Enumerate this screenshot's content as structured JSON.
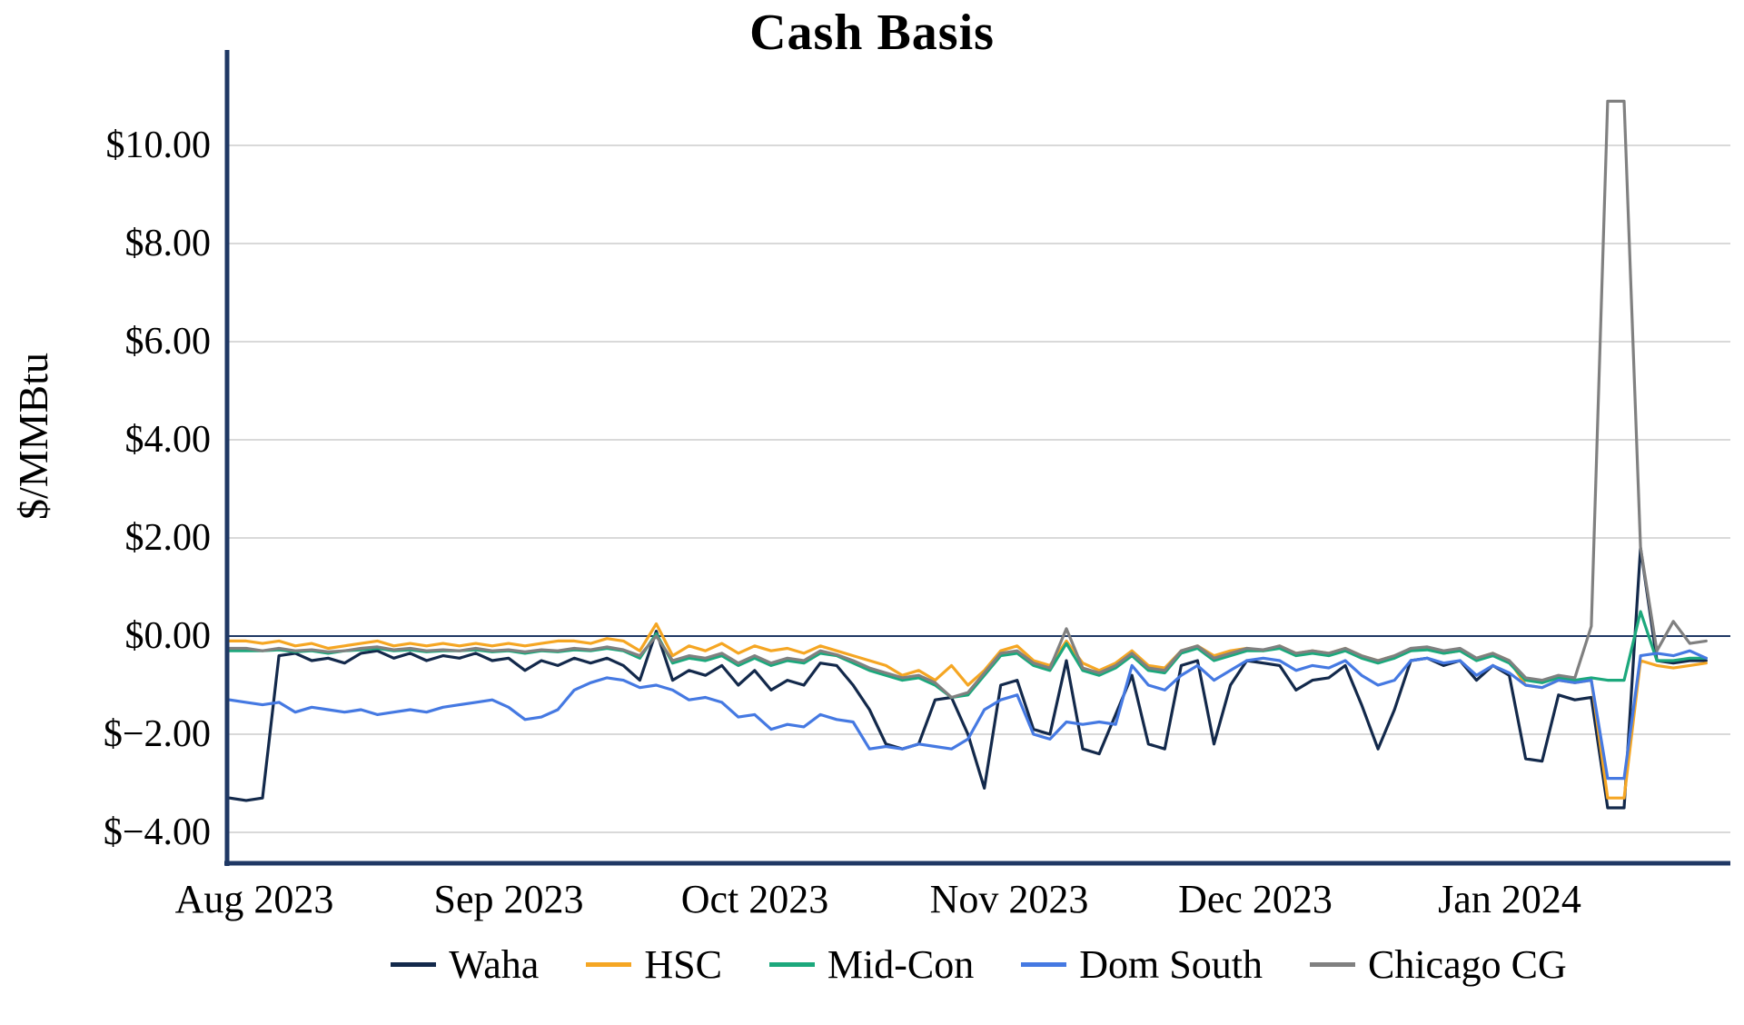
{
  "title": "Cash Basis",
  "colors": {
    "axis": "#1F3864",
    "gridline": "#D9D9D9",
    "background": "#FFFFFF"
  },
  "chart_data": {
    "type": "line",
    "title": "Cash Basis",
    "xlabel": "",
    "ylabel": "$/MMBtu",
    "x_unit": "days since 2023-08-01",
    "xlim": [
      -3,
      180
    ],
    "ylim": [
      -4.6,
      11.85
    ],
    "grid": "horizontal",
    "legend_position": "bottom",
    "x_ticks": [
      {
        "day": 0,
        "label": "Aug 2023"
      },
      {
        "day": 31,
        "label": "Sep 2023"
      },
      {
        "day": 61,
        "label": "Oct 2023"
      },
      {
        "day": 92,
        "label": "Nov 2023"
      },
      {
        "day": 122,
        "label": "Dec 2023"
      },
      {
        "day": 153,
        "label": "Jan 2024"
      }
    ],
    "y_ticks": [
      {
        "value": -4,
        "label": "$−4.00"
      },
      {
        "value": -2,
        "label": "$−2.00"
      },
      {
        "value": 0,
        "label": "$0.00"
      },
      {
        "value": 2,
        "label": "$2.00"
      },
      {
        "value": 4,
        "label": "$4.00"
      },
      {
        "value": 6,
        "label": "$6.00"
      },
      {
        "value": 8,
        "label": "$8.00"
      },
      {
        "value": 10,
        "label": "$10.00"
      }
    ],
    "x": [
      -3,
      -1,
      1,
      3,
      5,
      7,
      9,
      11,
      13,
      15,
      17,
      19,
      21,
      23,
      25,
      27,
      29,
      31,
      33,
      35,
      37,
      39,
      41,
      43,
      45,
      47,
      49,
      51,
      53,
      55,
      57,
      59,
      61,
      63,
      65,
      67,
      69,
      71,
      73,
      75,
      77,
      79,
      81,
      83,
      85,
      87,
      89,
      91,
      93,
      95,
      97,
      99,
      101,
      103,
      105,
      107,
      109,
      111,
      113,
      115,
      117,
      119,
      121,
      123,
      125,
      127,
      129,
      131,
      133,
      135,
      137,
      139,
      141,
      143,
      145,
      147,
      149,
      151,
      153,
      155,
      157,
      159,
      161,
      163,
      165,
      167,
      169,
      171,
      173,
      175,
      177
    ],
    "series": [
      {
        "name": "Waha",
        "color": "#13294B",
        "values": [
          -3.3,
          -3.35,
          -3.3,
          -0.4,
          -0.35,
          -0.5,
          -0.45,
          -0.55,
          -0.35,
          -0.3,
          -0.45,
          -0.35,
          -0.5,
          -0.4,
          -0.45,
          -0.35,
          -0.5,
          -0.45,
          -0.7,
          -0.5,
          -0.6,
          -0.45,
          -0.55,
          -0.45,
          -0.6,
          -0.9,
          0.1,
          -0.9,
          -0.7,
          -0.8,
          -0.6,
          -1.0,
          -0.7,
          -1.1,
          -0.9,
          -1.0,
          -0.55,
          -0.6,
          -1.0,
          -1.5,
          -2.2,
          -2.3,
          -2.2,
          -1.3,
          -1.25,
          -2.0,
          -3.1,
          -1.0,
          -0.9,
          -1.9,
          -2.0,
          -0.5,
          -2.3,
          -2.4,
          -1.6,
          -0.8,
          -2.2,
          -2.3,
          -0.6,
          -0.5,
          -2.2,
          -1.0,
          -0.5,
          -0.55,
          -0.6,
          -1.1,
          -0.9,
          -0.85,
          -0.6,
          -1.4,
          -2.3,
          -1.5,
          -0.5,
          -0.45,
          -0.6,
          -0.5,
          -0.9,
          -0.6,
          -0.8,
          -2.5,
          -2.55,
          -1.2,
          -1.3,
          -1.25,
          -3.5,
          -3.5,
          1.8,
          -0.5,
          -0.55,
          -0.5,
          -0.5
        ]
      },
      {
        "name": "HSC",
        "color": "#F5A623",
        "values": [
          -0.1,
          -0.1,
          -0.15,
          -0.1,
          -0.2,
          -0.15,
          -0.25,
          -0.2,
          -0.15,
          -0.1,
          -0.2,
          -0.15,
          -0.2,
          -0.15,
          -0.2,
          -0.15,
          -0.2,
          -0.15,
          -0.2,
          -0.15,
          -0.1,
          -0.1,
          -0.15,
          -0.05,
          -0.1,
          -0.3,
          0.25,
          -0.4,
          -0.2,
          -0.3,
          -0.15,
          -0.35,
          -0.2,
          -0.3,
          -0.25,
          -0.35,
          -0.2,
          -0.3,
          -0.4,
          -0.5,
          -0.6,
          -0.8,
          -0.7,
          -0.9,
          -0.6,
          -1.0,
          -0.7,
          -0.3,
          -0.2,
          -0.5,
          -0.6,
          -0.1,
          -0.55,
          -0.7,
          -0.55,
          -0.3,
          -0.6,
          -0.65,
          -0.3,
          -0.2,
          -0.4,
          -0.3,
          -0.25,
          -0.3,
          -0.2,
          -0.35,
          -0.3,
          -0.35,
          -0.25,
          -0.4,
          -0.5,
          -0.4,
          -0.3,
          -0.25,
          -0.35,
          -0.3,
          -0.45,
          -0.35,
          -0.5,
          -1.0,
          -1.05,
          -0.9,
          -0.95,
          -0.9,
          -3.3,
          -3.3,
          -0.5,
          -0.6,
          -0.65,
          -0.6,
          -0.55
        ]
      },
      {
        "name": "Mid-Con",
        "color": "#1CA87C",
        "values": [
          -0.3,
          -0.3,
          -0.3,
          -0.28,
          -0.32,
          -0.3,
          -0.35,
          -0.3,
          -0.28,
          -0.25,
          -0.3,
          -0.28,
          -0.32,
          -0.3,
          -0.3,
          -0.28,
          -0.32,
          -0.3,
          -0.35,
          -0.3,
          -0.32,
          -0.28,
          -0.3,
          -0.25,
          -0.3,
          -0.45,
          0.05,
          -0.55,
          -0.45,
          -0.5,
          -0.4,
          -0.6,
          -0.45,
          -0.6,
          -0.5,
          -0.55,
          -0.35,
          -0.4,
          -0.55,
          -0.7,
          -0.8,
          -0.9,
          -0.85,
          -1.0,
          -1.25,
          -1.2,
          -0.8,
          -0.4,
          -0.35,
          -0.6,
          -0.7,
          -0.15,
          -0.7,
          -0.8,
          -0.65,
          -0.4,
          -0.7,
          -0.75,
          -0.35,
          -0.25,
          -0.5,
          -0.4,
          -0.3,
          -0.3,
          -0.25,
          -0.4,
          -0.35,
          -0.4,
          -0.3,
          -0.45,
          -0.55,
          -0.45,
          -0.3,
          -0.28,
          -0.35,
          -0.3,
          -0.5,
          -0.4,
          -0.55,
          -0.9,
          -0.95,
          -0.85,
          -0.9,
          -0.85,
          -0.9,
          -0.9,
          0.5,
          -0.5,
          -0.5,
          -0.45,
          -0.45
        ]
      },
      {
        "name": "Dom South",
        "color": "#4579E2",
        "values": [
          -1.3,
          -1.35,
          -1.4,
          -1.35,
          -1.55,
          -1.45,
          -1.5,
          -1.55,
          -1.5,
          -1.6,
          -1.55,
          -1.5,
          -1.55,
          -1.45,
          -1.4,
          -1.35,
          -1.3,
          -1.45,
          -1.7,
          -1.65,
          -1.5,
          -1.1,
          -0.95,
          -0.85,
          -0.9,
          -1.05,
          -1.0,
          -1.1,
          -1.3,
          -1.25,
          -1.35,
          -1.65,
          -1.6,
          -1.9,
          -1.8,
          -1.85,
          -1.6,
          -1.7,
          -1.75,
          -2.3,
          -2.25,
          -2.3,
          -2.2,
          -2.25,
          -2.3,
          -2.1,
          -1.5,
          -1.3,
          -1.2,
          -2.0,
          -2.1,
          -1.75,
          -1.8,
          -1.75,
          -1.8,
          -0.6,
          -1.0,
          -1.1,
          -0.8,
          -0.6,
          -0.9,
          -0.7,
          -0.5,
          -0.45,
          -0.5,
          -0.7,
          -0.6,
          -0.65,
          -0.5,
          -0.8,
          -1.0,
          -0.9,
          -0.5,
          -0.45,
          -0.55,
          -0.5,
          -0.8,
          -0.6,
          -0.75,
          -1.0,
          -1.05,
          -0.9,
          -0.95,
          -0.9,
          -2.9,
          -2.9,
          -0.4,
          -0.35,
          -0.4,
          -0.3,
          -0.45
        ]
      },
      {
        "name": "Chicago CG",
        "color": "#808080",
        "values": [
          -0.25,
          -0.25,
          -0.3,
          -0.25,
          -0.3,
          -0.28,
          -0.32,
          -0.3,
          -0.25,
          -0.22,
          -0.28,
          -0.25,
          -0.3,
          -0.28,
          -0.3,
          -0.25,
          -0.3,
          -0.28,
          -0.32,
          -0.28,
          -0.3,
          -0.25,
          -0.28,
          -0.22,
          -0.28,
          -0.4,
          0.0,
          -0.5,
          -0.4,
          -0.45,
          -0.35,
          -0.55,
          -0.4,
          -0.55,
          -0.45,
          -0.5,
          -0.3,
          -0.38,
          -0.5,
          -0.65,
          -0.75,
          -0.85,
          -0.8,
          -0.95,
          -1.25,
          -1.15,
          -0.75,
          -0.35,
          -0.3,
          -0.55,
          -0.65,
          0.15,
          -0.65,
          -0.75,
          -0.6,
          -0.35,
          -0.65,
          -0.7,
          -0.3,
          -0.2,
          -0.45,
          -0.35,
          -0.25,
          -0.28,
          -0.2,
          -0.35,
          -0.3,
          -0.35,
          -0.25,
          -0.4,
          -0.5,
          -0.4,
          -0.25,
          -0.22,
          -0.3,
          -0.25,
          -0.45,
          -0.35,
          -0.5,
          -0.85,
          -0.9,
          -0.8,
          -0.85,
          0.2,
          10.9,
          10.9,
          1.8,
          -0.3,
          0.3,
          -0.15,
          -0.1
        ]
      }
    ]
  }
}
